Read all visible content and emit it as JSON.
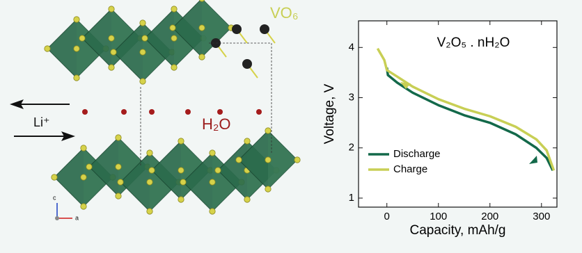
{
  "chart_data": {
    "type": "line",
    "title": "V₂O₅ . nH₂O",
    "x_label": "Capacity, mAh/g",
    "y_label": "Voltage, V",
    "xlim": [
      -55,
      330
    ],
    "xticks": [
      0,
      100,
      200,
      300
    ],
    "ylim": [
      0.82,
      4.53
    ],
    "yticks": [
      1,
      2,
      3,
      4
    ],
    "legend": "lower left",
    "series": [
      {
        "name": "Discharge",
        "color": "#13694a",
        "x": [
          0,
          2,
          20,
          50,
          100,
          150,
          200,
          250,
          290,
          310,
          322
        ],
        "values": [
          3.6,
          3.45,
          3.3,
          3.1,
          2.85,
          2.65,
          2.5,
          2.27,
          2.0,
          1.8,
          1.55
        ]
      },
      {
        "name": "Charge",
        "color": "#c8cf55",
        "x": [
          -18,
          -5,
          0,
          20,
          50,
          100,
          150,
          200,
          250,
          290,
          310,
          324
        ],
        "values": [
          3.98,
          3.75,
          3.55,
          3.42,
          3.22,
          2.97,
          2.78,
          2.63,
          2.42,
          2.17,
          1.95,
          1.55
        ]
      }
    ]
  },
  "structure": {
    "vo6": "VO₆",
    "h2o": "H₂O",
    "li": "Li⁺",
    "axis_c": "c",
    "axis_a": "a"
  }
}
